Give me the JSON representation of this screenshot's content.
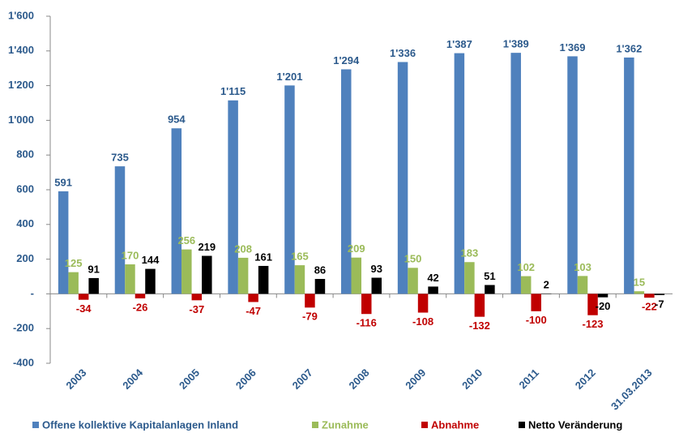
{
  "chart_data": {
    "type": "bar",
    "categories": [
      "2003",
      "2004",
      "2005",
      "2006",
      "2007",
      "2008",
      "2009",
      "2010",
      "2011",
      "2012",
      "31.03.2013"
    ],
    "series": [
      {
        "name": "Offene kollektive Kapitalanlagen Inland",
        "color": "#4f81bd",
        "label_color": "#2c5a8c",
        "values": [
          591,
          735,
          954,
          1115,
          1201,
          1294,
          1336,
          1387,
          1389,
          1369,
          1362
        ],
        "value_labels": [
          "591",
          "735",
          "954",
          "1'115",
          "1'201",
          "1'294",
          "1'336",
          "1'387",
          "1'389",
          "1'369",
          "1'362"
        ]
      },
      {
        "name": "Zunahme",
        "color": "#9bbb59",
        "label_color": "#9bbb59",
        "values": [
          125,
          170,
          256,
          208,
          165,
          209,
          150,
          183,
          102,
          103,
          15
        ]
      },
      {
        "name": "Abnahme",
        "color": "#c00000",
        "label_color": "#c00000",
        "values": [
          -34,
          -26,
          -37,
          -47,
          -79,
          -116,
          -108,
          -132,
          -100,
          -123,
          -22
        ]
      },
      {
        "name": "Netto Veränderung",
        "color": "#000000",
        "label_color": "#000000",
        "values": [
          91,
          144,
          219,
          161,
          86,
          93,
          42,
          51,
          2,
          -20,
          -7
        ]
      }
    ],
    "ylim": [
      -400,
      1600
    ],
    "yticks": [
      {
        "value": -400,
        "label": "-400"
      },
      {
        "value": -200,
        "label": "-200"
      },
      {
        "value": 0,
        "label": "-"
      },
      200,
      400,
      600,
      800,
      {
        "value": 1000,
        "label": "1'000"
      },
      {
        "value": 1200,
        "label": "1'200"
      },
      {
        "value": 1400,
        "label": "1'400"
      },
      {
        "value": 1600,
        "label": "1'600"
      }
    ],
    "grid": false,
    "legend": "bottom"
  }
}
